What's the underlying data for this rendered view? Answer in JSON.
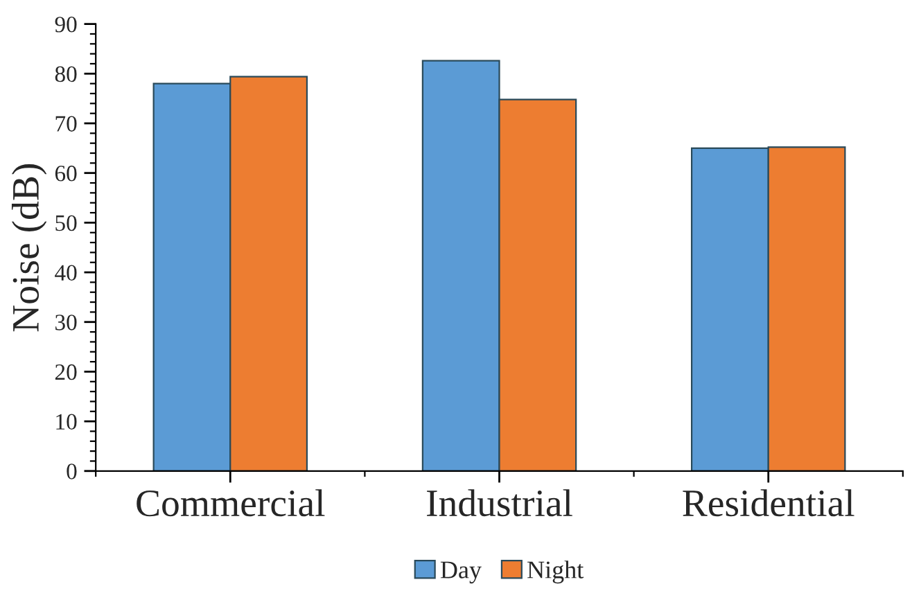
{
  "chart_data": {
    "type": "bar",
    "ylabel": "Noise (dB)",
    "categories": [
      "Commercial",
      "Industrial",
      "Residential"
    ],
    "series": [
      {
        "name": "Day",
        "color": "#5b9bd5",
        "values": [
          78.0,
          82.6,
          65.0
        ]
      },
      {
        "name": "Night",
        "color": "#ed7d31",
        "values": [
          79.4,
          74.8,
          65.2
        ]
      }
    ],
    "ylim": [
      0,
      90
    ],
    "yticks": [
      0,
      10,
      20,
      30,
      40,
      50,
      60,
      70,
      80,
      90
    ],
    "grid": false,
    "legend": "bottom"
  }
}
